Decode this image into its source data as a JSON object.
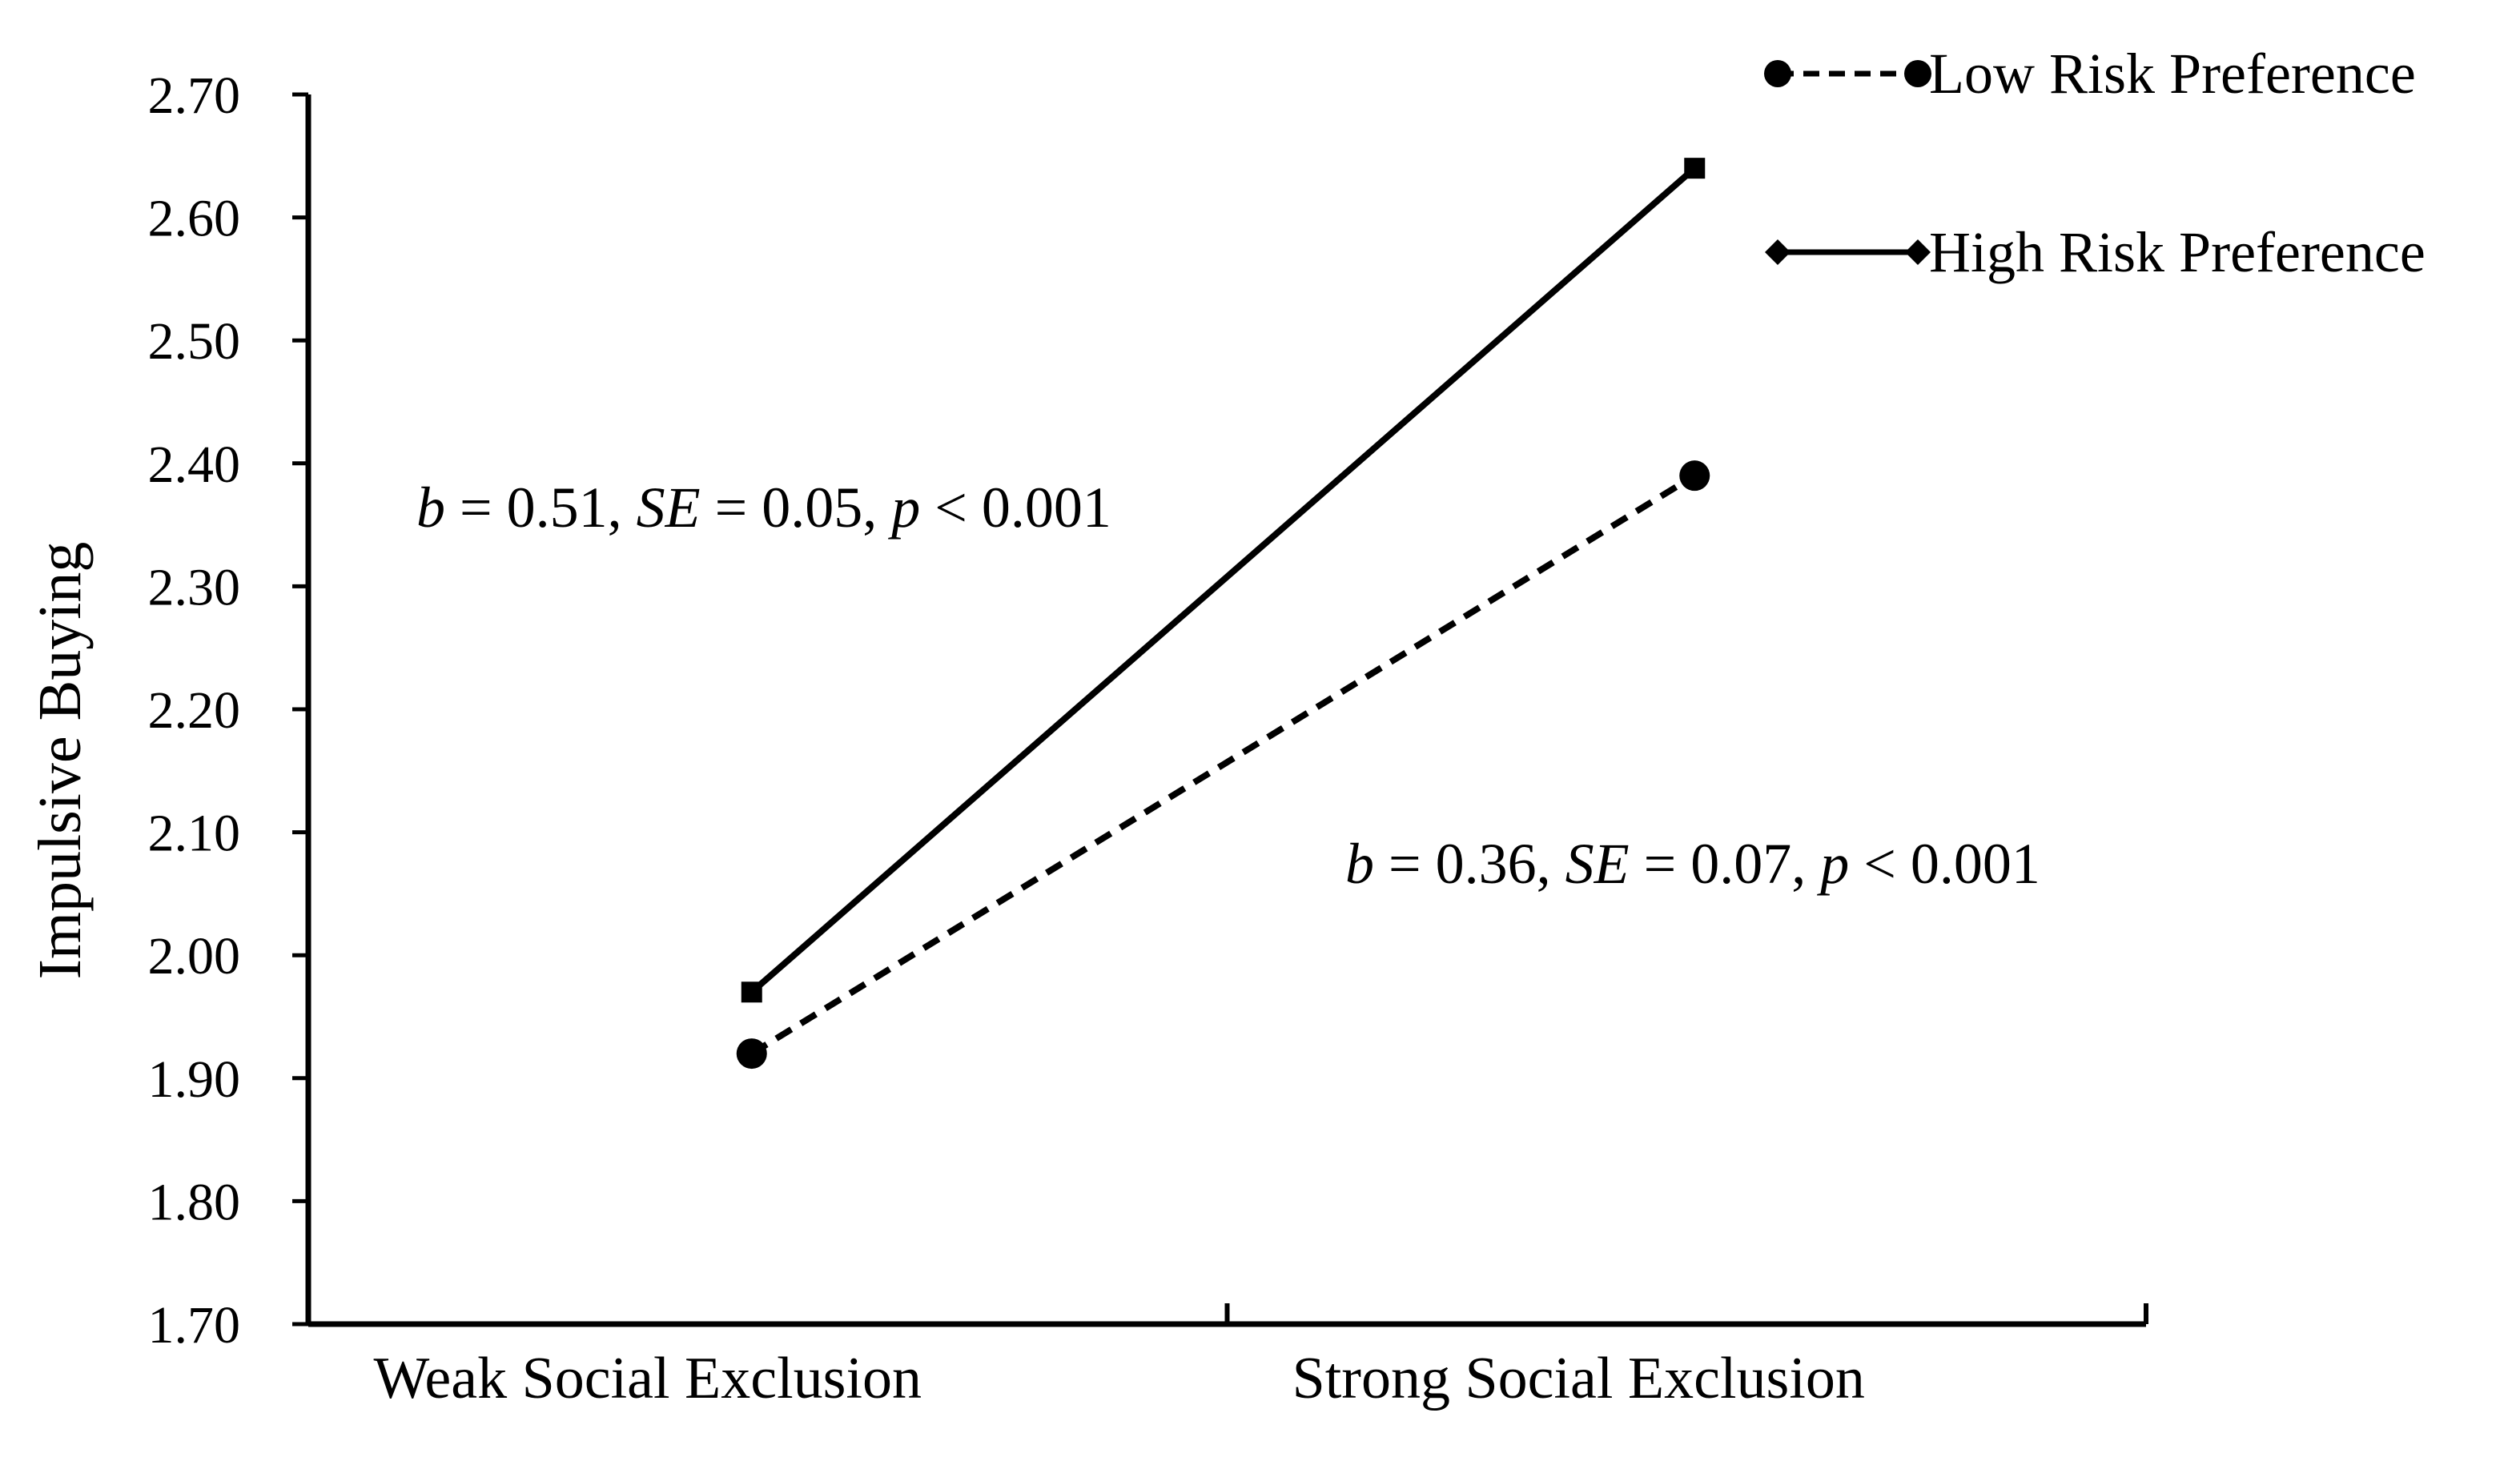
{
  "chart_data": {
    "type": "line",
    "title": "",
    "xlabel": "",
    "ylabel": "Impulsive Buying",
    "categories": [
      "Weak Social Exclusion",
      "Strong Social Exclusion"
    ],
    "ylim": [
      1.7,
      2.7
    ],
    "yticks": [
      "1.70",
      "1.80",
      "1.90",
      "2.00",
      "2.10",
      "2.20",
      "2.30",
      "2.40",
      "2.50",
      "2.60",
      "2.70"
    ],
    "grid": false,
    "legend_position": "top-right",
    "series": [
      {
        "name": "Low Risk Preference",
        "values": [
          1.92,
          2.39
        ],
        "line_style": "dashed",
        "marker": "circle",
        "color": "#000000"
      },
      {
        "name": "High Risk Preference",
        "values": [
          1.97,
          2.64
        ],
        "line_style": "solid",
        "marker": "square",
        "legend_marker": "diamond",
        "color": "#000000"
      }
    ],
    "annotations": [
      {
        "id": "high",
        "b": "0.51",
        "se": "0.05",
        "p": "0.001"
      },
      {
        "id": "low",
        "b": "0.36",
        "se": "0.07",
        "p": "0.001"
      }
    ]
  }
}
